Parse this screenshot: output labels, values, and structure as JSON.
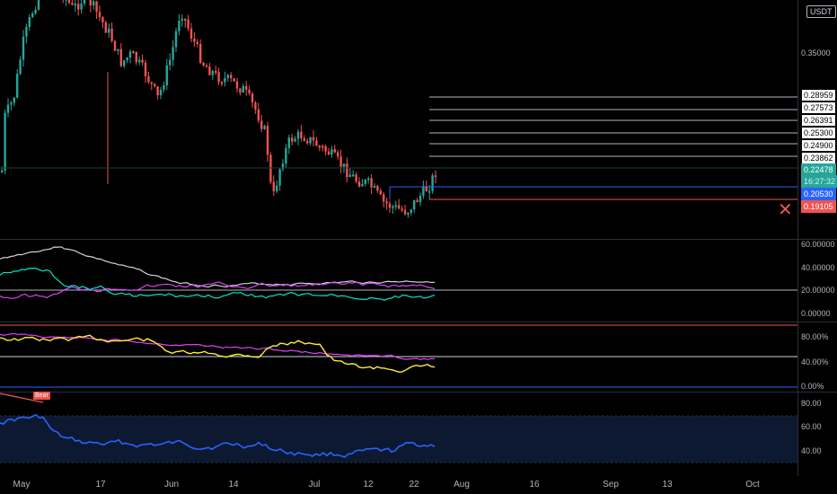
{
  "unit": "USDT",
  "price_scale": {
    "labels": [
      "0.35000"
    ],
    "levels": [
      {
        "label": "0.28959",
        "kind": "level"
      },
      {
        "label": "0.27573",
        "kind": "level"
      },
      {
        "label": "0.26391",
        "kind": "level"
      },
      {
        "label": "0.25300",
        "kind": "level"
      },
      {
        "label": "0.24900",
        "kind": "level"
      },
      {
        "label": "0.23862",
        "kind": "level"
      },
      {
        "label": "0.22478",
        "kind": "last"
      },
      {
        "label": "16:27:32",
        "kind": "countdown"
      },
      {
        "label": "0.20530",
        "kind": "entry"
      },
      {
        "label": "0.19105",
        "kind": "stop"
      }
    ]
  },
  "adx_scale": [
    "60.00000",
    "40.00000",
    "20.00000",
    "0.00000"
  ],
  "stoch_scale": [
    "80.00%",
    "40.00%",
    "0.00%"
  ],
  "rsi_scale": [
    "80.00",
    "60.00",
    "40.00"
  ],
  "badge": "Bear",
  "close_icon": "x-mark-icon",
  "time_axis": [
    "May",
    "17",
    "Jun",
    "14",
    "Jul",
    "12",
    "22",
    "Aug",
    "16",
    "Sep",
    "13",
    "Oct"
  ],
  "colors": {
    "up": "#26a69a",
    "down": "#ef5350",
    "entry": "#2962ff",
    "stop": "#ef5350",
    "rsi": "#2962ff",
    "stoch_k": "#ffeb3b",
    "stoch_d": "#e040fb",
    "adx_white": "#d1d4dc",
    "adx_pink": "#e040fb",
    "adx_teal": "#00e5cc"
  }
}
